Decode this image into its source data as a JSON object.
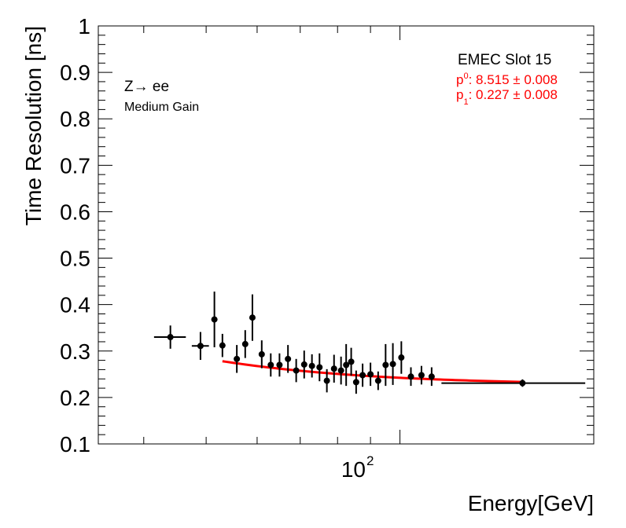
{
  "chart_data": {
    "type": "scatter",
    "title": "",
    "xlabel": "Energy[GeV]",
    "ylabel": "Time Resolution [ns]",
    "xscale": "log",
    "xlim": [
      34,
      200
    ],
    "ylim": [
      0.1,
      1.0
    ],
    "yticks": [
      0.1,
      0.2,
      0.3,
      0.4,
      0.5,
      0.6,
      0.7,
      0.8,
      0.9,
      1.0
    ],
    "yticklabels": [
      "0.1",
      "0.2",
      "0.3",
      "0.4",
      "0.5",
      "0.6",
      "0.7",
      "0.8",
      "0.9",
      "1"
    ],
    "xtick_label": {
      "base": "10",
      "exponent": "2",
      "value": 100
    },
    "annotations": {
      "process_main": "Z",
      "process_arrow": "→",
      "process_rest": " ee",
      "gain": "Medium Gain",
      "slot": "EMEC Slot 15",
      "p0_name": "p",
      "p0_sub": "0",
      "p0_value": ": 8.515 ± 0.008",
      "p1_name": "p",
      "p1_sub": "1",
      "p1_value": ": 0.227 ± 0.008"
    },
    "colors": {
      "data": "#000000",
      "fit": "#ff0000",
      "fit_text": "#ff0000"
    },
    "series": [
      {
        "name": "data",
        "points": [
          {
            "x": 44.0,
            "xlo": 41.5,
            "xhi": 46.5,
            "y": 0.33,
            "yerr": 0.025
          },
          {
            "x": 49.0,
            "xlo": 47.5,
            "xhi": 50.5,
            "y": 0.311,
            "yerr": 0.03
          },
          {
            "x": 51.5,
            "y": 0.368,
            "yerr": 0.06
          },
          {
            "x": 53.0,
            "y": 0.312,
            "yerr": 0.025
          },
          {
            "x": 55.8,
            "y": 0.283,
            "yerr": 0.03
          },
          {
            "x": 57.5,
            "y": 0.315,
            "yerr": 0.03
          },
          {
            "x": 59.0,
            "y": 0.372,
            "yerr": 0.05
          },
          {
            "x": 61.0,
            "y": 0.293,
            "yerr": 0.03
          },
          {
            "x": 63.0,
            "y": 0.27,
            "yerr": 0.025
          },
          {
            "x": 65.0,
            "y": 0.27,
            "yerr": 0.025
          },
          {
            "x": 67.0,
            "y": 0.283,
            "yerr": 0.03
          },
          {
            "x": 69.0,
            "y": 0.258,
            "yerr": 0.025
          },
          {
            "x": 71.0,
            "y": 0.271,
            "yerr": 0.03
          },
          {
            "x": 73.0,
            "y": 0.268,
            "yerr": 0.025
          },
          {
            "x": 75.0,
            "y": 0.265,
            "yerr": 0.03
          },
          {
            "x": 77.0,
            "y": 0.236,
            "yerr": 0.025
          },
          {
            "x": 79.0,
            "y": 0.262,
            "yerr": 0.03
          },
          {
            "x": 81.0,
            "y": 0.258,
            "yerr": 0.03
          },
          {
            "x": 82.5,
            "y": 0.27,
            "yerr": 0.045
          },
          {
            "x": 84.0,
            "y": 0.277,
            "yerr": 0.03
          },
          {
            "x": 85.5,
            "y": 0.233,
            "yerr": 0.025
          },
          {
            "x": 87.5,
            "y": 0.248,
            "yerr": 0.025
          },
          {
            "x": 90.0,
            "y": 0.25,
            "yerr": 0.025
          },
          {
            "x": 92.5,
            "y": 0.236,
            "yerr": 0.02
          },
          {
            "x": 95.0,
            "y": 0.27,
            "yerr": 0.045
          },
          {
            "x": 97.5,
            "y": 0.272,
            "yerr": 0.045
          },
          {
            "x": 100.5,
            "y": 0.286,
            "yerr": 0.035
          },
          {
            "x": 104.0,
            "y": 0.245,
            "yerr": 0.02
          },
          {
            "x": 108.0,
            "y": 0.248,
            "yerr": 0.02
          },
          {
            "x": 112.0,
            "y": 0.245,
            "yerr": 0.02
          },
          {
            "x": 155.0,
            "xlo": 116.0,
            "xhi": 194.0,
            "y": 0.231,
            "yerr": 0.008
          }
        ]
      },
      {
        "name": "fit",
        "type": "line",
        "function": "sqrt((p0/E)^2 + p1^2)",
        "x_range": [
          53.0,
          155.0
        ],
        "p0": 8.515,
        "p1": 0.227
      }
    ]
  }
}
